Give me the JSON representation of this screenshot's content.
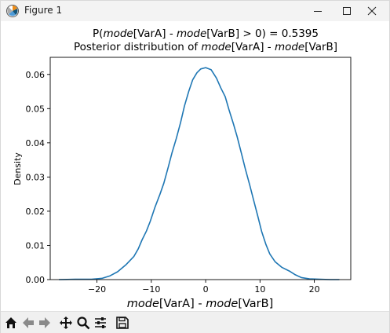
{
  "window": {
    "title": "Figure 1"
  },
  "chart_data": {
    "type": "area",
    "title_line1": {
      "prefix": "P(",
      "m1": "mode",
      "a1": "[VarA] - ",
      "m2": "mode",
      "a2": "[VarB] > 0) = 0.5395"
    },
    "title_line2": {
      "prefix": "Posterior distribution of ",
      "m1": "mode",
      "a1": "[VarA] - ",
      "m2": "mode",
      "a2": "[VarB]"
    },
    "xlabel": {
      "m1": "mode",
      "a1": "[VarA] - ",
      "m2": "mode",
      "a2": "[VarB]"
    },
    "ylabel": "Density",
    "xlim": [
      -28.6,
      26.7
    ],
    "ylim": [
      0,
      0.065
    ],
    "x_ticks": [
      -20,
      -10,
      0,
      10,
      20
    ],
    "x_tick_labels": [
      "−20",
      "−10",
      "0",
      "10",
      "20"
    ],
    "y_ticks": [
      0,
      0.01,
      0.02,
      0.03,
      0.04,
      0.05,
      0.06
    ],
    "y_tick_labels": [
      "0.00",
      "0.01",
      "0.02",
      "0.03",
      "0.04",
      "0.05",
      "0.06"
    ],
    "grid": false,
    "line_color": "#1f77b4",
    "series": [
      {
        "x": [
          -27.0,
          -24.0,
          -21.0,
          -19.0,
          -17.6,
          -16.2,
          -14.7,
          -13.2,
          -12.4,
          -11.7,
          -10.9,
          -10.2,
          -9.3,
          -8.4,
          -7.7,
          -6.9,
          -6.2,
          -5.4,
          -4.6,
          -3.9,
          -3.1,
          -2.4,
          -1.6,
          -0.9,
          0.0,
          1.0,
          2.0,
          2.8,
          3.6,
          4.3,
          5.1,
          5.8,
          6.6,
          7.3,
          8.1,
          8.8,
          9.6,
          10.3,
          11.1,
          11.8,
          12.8,
          14.0,
          15.4,
          16.5,
          17.6,
          19.1,
          21.0,
          23.0,
          24.6
        ],
        "y": [
          0.0,
          0.0001,
          0.0001,
          0.0004,
          0.0011,
          0.0023,
          0.0043,
          0.0068,
          0.009,
          0.0116,
          0.0142,
          0.017,
          0.0213,
          0.025,
          0.0282,
          0.0328,
          0.037,
          0.0413,
          0.046,
          0.0508,
          0.0551,
          0.0584,
          0.0605,
          0.0616,
          0.062,
          0.0614,
          0.0589,
          0.056,
          0.0535,
          0.0496,
          0.0456,
          0.0418,
          0.0368,
          0.0324,
          0.0277,
          0.0234,
          0.0185,
          0.0141,
          0.0102,
          0.0075,
          0.0052,
          0.0036,
          0.0025,
          0.0014,
          0.0006,
          0.0002,
          0.0001,
          0.0,
          0.0
        ]
      }
    ]
  }
}
